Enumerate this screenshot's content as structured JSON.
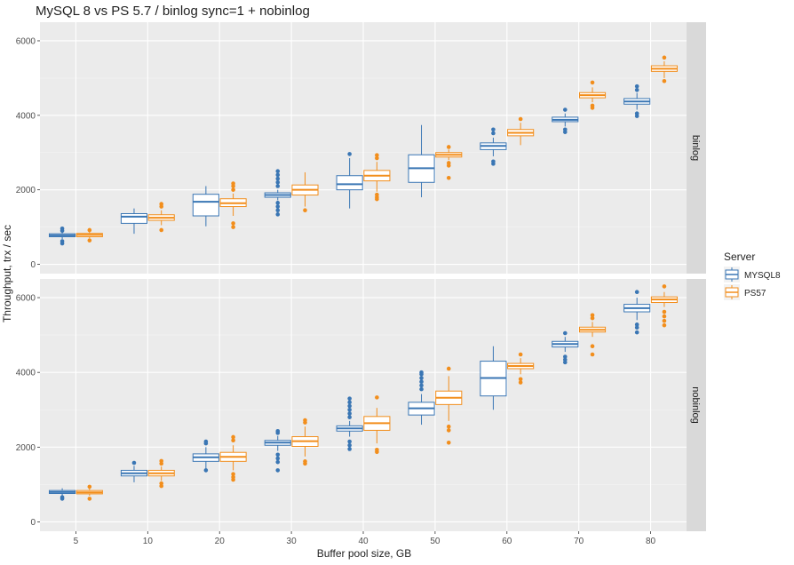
{
  "chart_data": {
    "type": "boxplot",
    "title": "MySQL 8 vs PS 5.7 / binlog sync=1 + nobinlog",
    "xlabel": "Buffer pool size, GB",
    "ylabel": "Throughput, trx / sec",
    "categories": [
      "5",
      "10",
      "20",
      "30",
      "40",
      "50",
      "60",
      "70",
      "80"
    ],
    "ylim": [
      -250,
      6500
    ],
    "yticks": [
      0,
      2000,
      4000,
      6000
    ],
    "grid": true,
    "legend": {
      "title": "Server",
      "position": "right",
      "entries": [
        {
          "name": "MYSQL8",
          "color": "#3a76b4"
        },
        {
          "name": "PS57",
          "color": "#f28e1c"
        }
      ]
    },
    "panels": [
      {
        "label": "binlog",
        "series": [
          {
            "name": "MYSQL8",
            "boxes": [
              {
                "q1": 740,
                "median": 780,
                "q3": 820,
                "whisker_low": 680,
                "whisker_high": 880,
                "outliers": [
                  620,
                  560,
                  900,
                  960
                ]
              },
              {
                "q1": 1100,
                "median": 1280,
                "q3": 1360,
                "whisker_low": 820,
                "whisker_high": 1500,
                "outliers": []
              },
              {
                "q1": 1300,
                "median": 1680,
                "q3": 1880,
                "whisker_low": 1020,
                "whisker_high": 2100,
                "outliers": []
              },
              {
                "q1": 1800,
                "median": 1860,
                "q3": 1920,
                "whisker_low": 1720,
                "whisker_high": 2000,
                "outliers": [
                  1340,
                  1450,
                  1550,
                  1650,
                  2100,
                  2200,
                  2300,
                  2400,
                  2500
                ]
              },
              {
                "q1": 2000,
                "median": 2150,
                "q3": 2380,
                "whisker_low": 1500,
                "whisker_high": 2850,
                "outliers": [
                  2960
                ]
              },
              {
                "q1": 2200,
                "median": 2580,
                "q3": 2940,
                "whisker_low": 1800,
                "whisker_high": 3740,
                "outliers": []
              },
              {
                "q1": 3080,
                "median": 3180,
                "q3": 3260,
                "whisker_low": 2900,
                "whisker_high": 3400,
                "outliers": [
                  2700,
                  2760,
                  3520,
                  3620
                ]
              },
              {
                "q1": 3830,
                "median": 3880,
                "q3": 3950,
                "whisker_low": 3700,
                "whisker_high": 4050,
                "outliers": [
                  3550,
                  3620,
                  4150
                ]
              },
              {
                "q1": 4300,
                "median": 4370,
                "q3": 4450,
                "whisker_low": 4150,
                "whisker_high": 4600,
                "outliers": [
                  3980,
                  4050,
                  4680,
                  4780
                ]
              }
            ]
          },
          {
            "name": "PS57",
            "boxes": [
              {
                "q1": 740,
                "median": 790,
                "q3": 830,
                "whisker_low": 700,
                "whisker_high": 880,
                "outliers": [
                  640,
                  920
                ]
              },
              {
                "q1": 1180,
                "median": 1250,
                "q3": 1330,
                "whisker_low": 1050,
                "whisker_high": 1450,
                "outliers": [
                  920,
                  1550,
                  1620
                ]
              },
              {
                "q1": 1550,
                "median": 1640,
                "q3": 1760,
                "whisker_low": 1300,
                "whisker_high": 1900,
                "outliers": [
                  1000,
                  1100,
                  2000,
                  2100,
                  2170
                ]
              },
              {
                "q1": 1860,
                "median": 2000,
                "q3": 2130,
                "whisker_low": 1550,
                "whisker_high": 2470,
                "outliers": [
                  1450
                ]
              },
              {
                "q1": 2240,
                "median": 2380,
                "q3": 2520,
                "whisker_low": 1950,
                "whisker_high": 2750,
                "outliers": [
                  1750,
                  1800,
                  1870,
                  2850,
                  2930
                ]
              },
              {
                "q1": 2880,
                "median": 2940,
                "q3": 3000,
                "whisker_low": 2800,
                "whisker_high": 3080,
                "outliers": [
                  2320,
                  2650,
                  2720,
                  3150
                ]
              },
              {
                "q1": 3450,
                "median": 3530,
                "q3": 3620,
                "whisker_low": 3200,
                "whisker_high": 3800,
                "outliers": [
                  3900
                ]
              },
              {
                "q1": 4470,
                "median": 4540,
                "q3": 4610,
                "whisker_low": 4350,
                "whisker_high": 4750,
                "outliers": [
                  4200,
                  4260,
                  4880
                ]
              },
              {
                "q1": 5180,
                "median": 5250,
                "q3": 5330,
                "whisker_low": 5000,
                "whisker_high": 5450,
                "outliers": [
                  4920,
                  5550
                ]
              }
            ]
          }
        ]
      },
      {
        "label": "nobinlog",
        "series": [
          {
            "name": "MYSQL8",
            "boxes": [
              {
                "q1": 760,
                "median": 800,
                "q3": 840,
                "whisker_low": 700,
                "whisker_high": 900,
                "outliers": [
                  620,
                  660
                ]
              },
              {
                "q1": 1230,
                "median": 1300,
                "q3": 1380,
                "whisker_low": 1060,
                "whisker_high": 1500,
                "outliers": [
                  1580
                ]
              },
              {
                "q1": 1620,
                "median": 1730,
                "q3": 1820,
                "whisker_low": 1400,
                "whisker_high": 2000,
                "outliers": [
                  1380,
                  2100,
                  2150
                ]
              },
              {
                "q1": 2050,
                "median": 2120,
                "q3": 2180,
                "whisker_low": 1900,
                "whisker_high": 2300,
                "outliers": [
                  1380,
                  1600,
                  1700,
                  1800,
                  2380,
                  2430
                ]
              },
              {
                "q1": 2430,
                "median": 2500,
                "q3": 2570,
                "whisker_low": 2280,
                "whisker_high": 2700,
                "outliers": [
                  1950,
                  2050,
                  2150,
                  2800,
                  2900,
                  3000,
                  3100,
                  3200,
                  3300
                ]
              },
              {
                "q1": 2860,
                "median": 3040,
                "q3": 3200,
                "whisker_low": 2600,
                "whisker_high": 3420,
                "outliers": [
                  3550,
                  3650,
                  3750,
                  3850,
                  3950,
                  4000
                ]
              },
              {
                "q1": 3370,
                "median": 3850,
                "q3": 4300,
                "whisker_low": 3000,
                "whisker_high": 4700,
                "outliers": []
              },
              {
                "q1": 4680,
                "median": 4760,
                "q3": 4830,
                "whisker_low": 4550,
                "whisker_high": 4950,
                "outliers": [
                  4270,
                  4340,
                  4420,
                  5050
                ]
              },
              {
                "q1": 5620,
                "median": 5720,
                "q3": 5820,
                "whisker_low": 5400,
                "whisker_high": 6000,
                "outliers": [
                  5070,
                  5200,
                  5280,
                  6150
                ]
              }
            ]
          },
          {
            "name": "PS57",
            "boxes": [
              {
                "q1": 750,
                "median": 790,
                "q3": 840,
                "whisker_low": 700,
                "whisker_high": 900,
                "outliers": [
                  620,
                  940
                ]
              },
              {
                "q1": 1230,
                "median": 1300,
                "q3": 1380,
                "whisker_low": 1100,
                "whisker_high": 1480,
                "outliers": [
                  960,
                  1030,
                  1560,
                  1630
                ]
              },
              {
                "q1": 1620,
                "median": 1740,
                "q3": 1860,
                "whisker_low": 1380,
                "whisker_high": 2050,
                "outliers": [
                  1130,
                  1200,
                  1280,
                  2180,
                  2270
                ]
              },
              {
                "q1": 2020,
                "median": 2160,
                "q3": 2280,
                "whisker_low": 1750,
                "whisker_high": 2550,
                "outliers": [
                  1560,
                  1620,
                  2660,
                  2720
                ]
              },
              {
                "q1": 2450,
                "median": 2640,
                "q3": 2820,
                "whisker_low": 2100,
                "whisker_high": 3050,
                "outliers": [
                  1870,
                  1930,
                  3330
                ]
              },
              {
                "q1": 3140,
                "median": 3320,
                "q3": 3500,
                "whisker_low": 2700,
                "whisker_high": 3900,
                "outliers": [
                  2120,
                  2450,
                  2550,
                  4100
                ]
              },
              {
                "q1": 4100,
                "median": 4170,
                "q3": 4240,
                "whisker_low": 3950,
                "whisker_high": 4380,
                "outliers": [
                  3730,
                  3820,
                  4480
                ]
              },
              {
                "q1": 5080,
                "median": 5140,
                "q3": 5210,
                "whisker_low": 4950,
                "whisker_high": 5350,
                "outliers": [
                  4480,
                  4700,
                  5450,
                  5530
                ]
              },
              {
                "q1": 5870,
                "median": 5950,
                "q3": 6020,
                "whisker_low": 5750,
                "whisker_high": 6150,
                "outliers": [
                  5260,
                  5380,
                  5500,
                  5620,
                  6300
                ]
              }
            ]
          }
        ]
      }
    ]
  }
}
